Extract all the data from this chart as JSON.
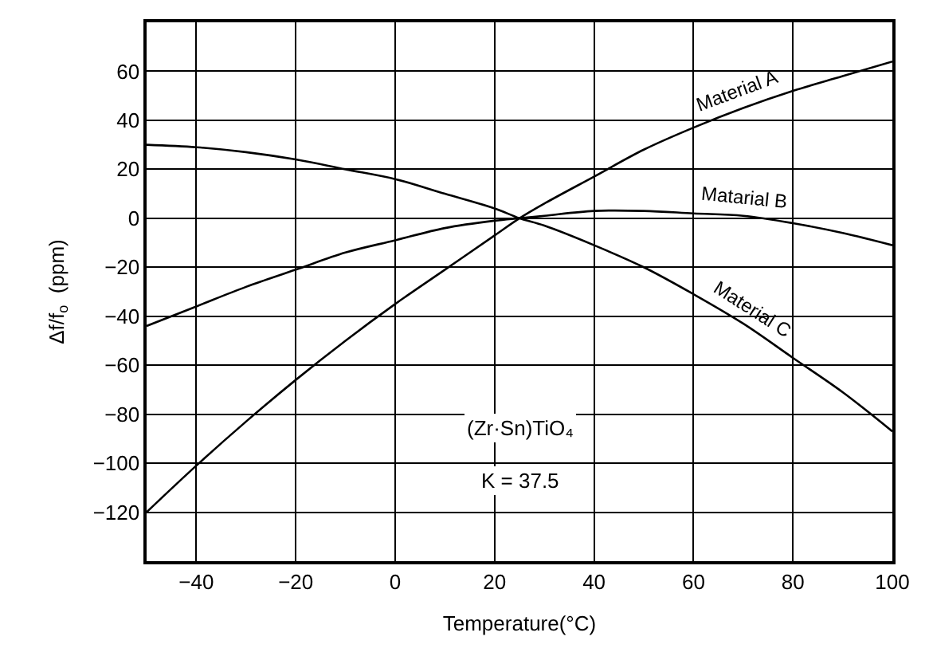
{
  "chart_data": {
    "type": "line",
    "xlabel": "Temperature(°C)",
    "ylabel": "Δf/f$_{o}$  (ppm)",
    "x": [
      -50,
      -40,
      -30,
      -20,
      -10,
      0,
      10,
      20,
      25,
      30,
      40,
      50,
      60,
      70,
      80,
      90,
      100
    ],
    "series": [
      {
        "name": "Material A",
        "color": "#000000",
        "values": [
          -120,
          -101,
          -83,
          -66,
          -50,
          -35,
          -21,
          -7,
          0,
          6,
          17,
          28,
          37,
          45,
          52,
          58,
          64
        ]
      },
      {
        "name": "Matarial B",
        "color": "#000000",
        "values": [
          -44,
          -36,
          -28,
          -21,
          -14,
          -9,
          -4,
          -1,
          0,
          1,
          3,
          3,
          2,
          1,
          -2,
          -6,
          -11
        ]
      },
      {
        "name": "Material C",
        "color": "#000000",
        "values": [
          30,
          29,
          27,
          24,
          20,
          16,
          10,
          4,
          0,
          -3,
          -11,
          -20,
          -31,
          -43,
          -57,
          -71,
          -87
        ]
      }
    ],
    "xlim": [
      -50,
      100
    ],
    "xticks": [
      {
        "value": -40,
        "label": "−40"
      },
      {
        "value": -20,
        "label": "−20"
      },
      0,
      20,
      40,
      60,
      80,
      100
    ],
    "ylim": [
      -140,
      80
    ],
    "yticks": [
      {
        "value": -120,
        "label": "−120"
      },
      {
        "value": -100,
        "label": "−100"
      },
      {
        "value": -80,
        "label": "−80"
      },
      {
        "value": -60,
        "label": "−60"
      },
      {
        "value": -40,
        "label": "−40"
      },
      {
        "value": -20,
        "label": "−20"
      },
      0,
      20,
      40,
      60
    ],
    "annotations": [
      "(Zr·Sn)TiO₄",
      "K = 37.5"
    ],
    "grid": true,
    "legend": false,
    "marker": "none",
    "line_style": "solid"
  }
}
